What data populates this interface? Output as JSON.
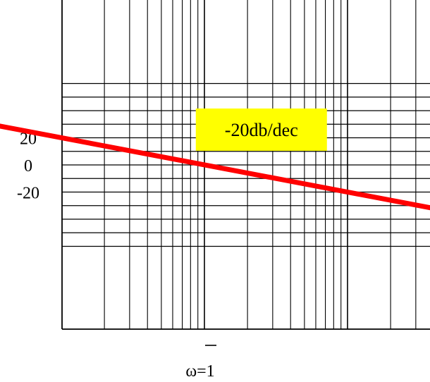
{
  "chart_data": {
    "type": "line",
    "title": "",
    "xlabel": "",
    "ylabel": "",
    "x_scale": "log",
    "xlim": [
      0.1,
      100
    ],
    "ylim": [
      -60,
      60
    ],
    "y_tick_values": [
      20,
      0,
      -20
    ],
    "y_tick_labels": [
      "20",
      "0",
      "-20"
    ],
    "x_marker": {
      "value": 1,
      "label": "ω=1"
    },
    "series": [
      {
        "x": [
          0.03,
          100
        ],
        "y": [
          30.5,
          -40
        ],
        "color": "#ff0000"
      }
    ],
    "annotation": {
      "text": "-20db/dec",
      "x": 2.5,
      "y": 26,
      "background": "#ffff00"
    },
    "grid": true,
    "grid_color": "#000000"
  }
}
